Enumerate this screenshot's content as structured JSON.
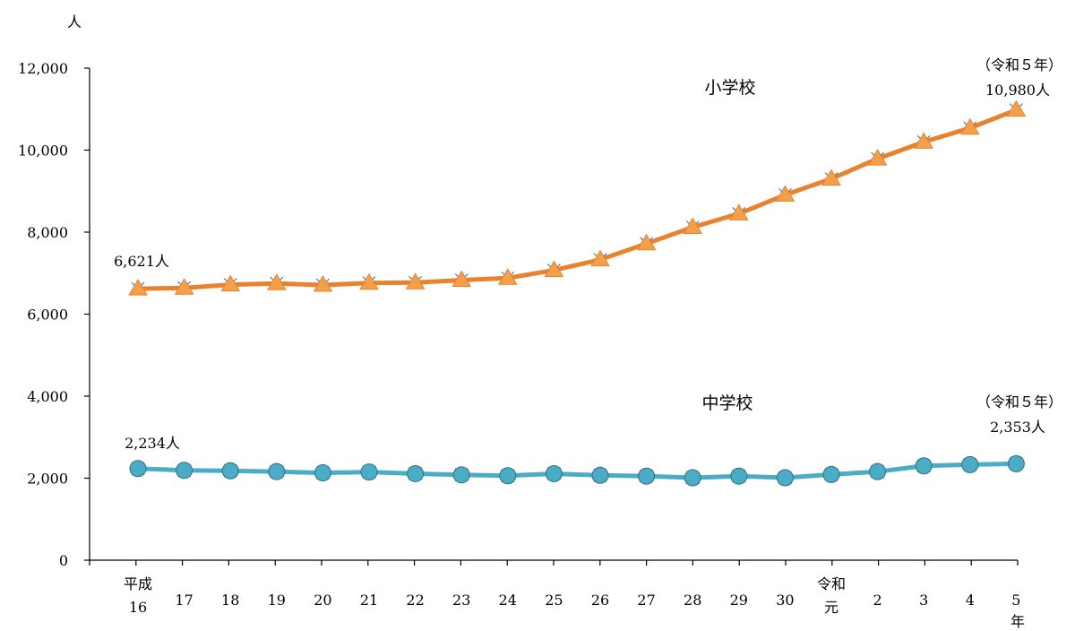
{
  "chart_data": {
    "type": "line",
    "y_unit": "人",
    "x_unit": "年",
    "ylim": [
      0,
      12000
    ],
    "yticks": [
      "0",
      "2,000",
      "4,000",
      "6,000",
      "8,000",
      "10,000",
      "12,000"
    ],
    "ytick_values": [
      0,
      2000,
      4000,
      6000,
      8000,
      10000,
      12000
    ],
    "grid": false,
    "categories": [
      "平成16",
      "17",
      "18",
      "19",
      "20",
      "21",
      "22",
      "23",
      "24",
      "25",
      "26",
      "27",
      "28",
      "29",
      "30",
      "令和元",
      "2",
      "3",
      "4",
      "5"
    ],
    "series": [
      {
        "name": "小学校",
        "color": "#f4a04a",
        "line_color": "#e8822f",
        "marker": "triangle",
        "values": [
          6621,
          6640,
          6720,
          6750,
          6710,
          6760,
          6770,
          6830,
          6880,
          7070,
          7330,
          7720,
          8120,
          8450,
          8910,
          9300,
          9790,
          10200,
          10540,
          10980
        ]
      },
      {
        "name": "中学校",
        "color": "#4bacc6",
        "line_color": "#4bacc6",
        "marker": "circle",
        "values": [
          2234,
          2190,
          2180,
          2160,
          2130,
          2150,
          2110,
          2080,
          2060,
          2110,
          2070,
          2050,
          2010,
          2050,
          2010,
          2090,
          2160,
          2300,
          2330,
          2353
        ]
      }
    ],
    "annotations": {
      "elem_first": "6,621人",
      "elem_last_era": "（令和５年）",
      "elem_last": "10,980人",
      "mid_first": "2,234人",
      "mid_last_era": "（令和５年）",
      "mid_last": "2,353人"
    }
  }
}
